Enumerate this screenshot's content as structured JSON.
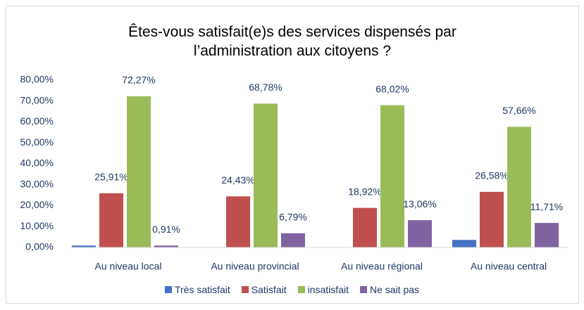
{
  "chart_data": {
    "type": "bar",
    "title": "Êtes-vous satisfait(e)s des services dispensés par l’administration aux citoyens ?",
    "categories": [
      "Au niveau local",
      "Au niveau provincial",
      "Au niveau régional",
      "Au niveau central"
    ],
    "series": [
      {
        "name": "Très satisfait",
        "color": "#4472c4",
        "values": [
          0.9,
          0,
          0,
          3.6
        ]
      },
      {
        "name": "Satisfait",
        "color": "#c0504d",
        "values": [
          25.91,
          24.43,
          18.92,
          26.58
        ],
        "value_labels": [
          "25,91%",
          "24,43%",
          "18,92%",
          "26,58%"
        ]
      },
      {
        "name": "insatisfait",
        "color": "#9bbb59",
        "values": [
          72.27,
          68.78,
          68.02,
          57.66
        ],
        "value_labels": [
          "72,27%",
          "68,78%",
          "68,02%",
          "57,66%"
        ]
      },
      {
        "name": "Ne sait pas",
        "color": "#8064a2",
        "values": [
          0.91,
          6.79,
          13.06,
          11.71
        ],
        "value_labels": [
          "0,91%",
          "6,79%",
          "13,06%",
          "11,71%"
        ]
      }
    ],
    "ylim": [
      0,
      80
    ],
    "yticks": [
      {
        "value": 0,
        "label": "0,00%"
      },
      {
        "value": 10,
        "label": "10,00%"
      },
      {
        "value": 20,
        "label": "20,00%"
      },
      {
        "value": 30,
        "label": "30,00%"
      },
      {
        "value": 40,
        "label": "40,00%"
      },
      {
        "value": 50,
        "label": "50,00%"
      },
      {
        "value": 60,
        "label": "60,00%"
      },
      {
        "value": 70,
        "label": "70,00%"
      },
      {
        "value": 80,
        "label": "80,00%"
      }
    ],
    "grid": false,
    "legend": "bottom"
  }
}
